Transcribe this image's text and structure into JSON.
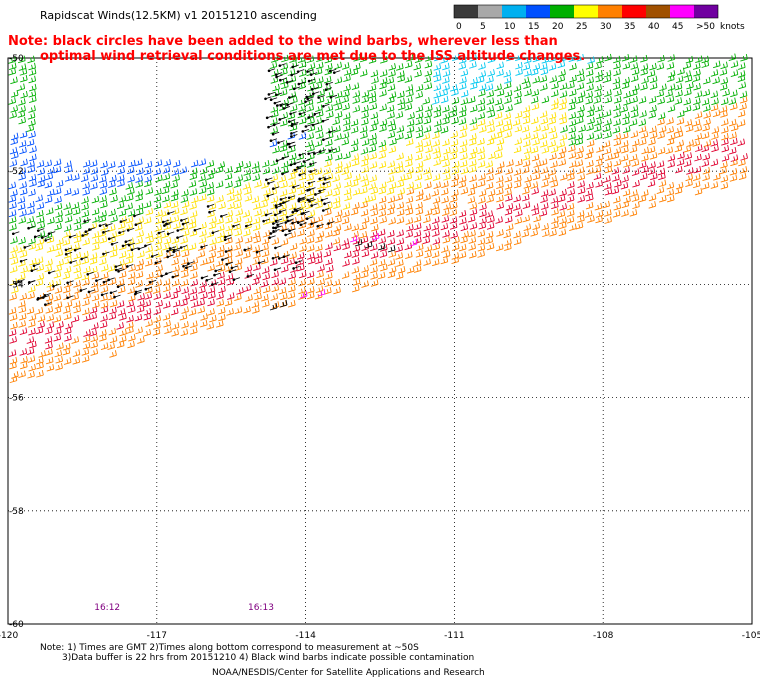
{
  "header": {
    "title": "Rapidscat Winds(12.5KM) v1 20151210 ascending"
  },
  "note": {
    "line1": "Note: black circles have been added to the wind barbs, wherever less than",
    "line2": "optimal wind retrieval conditions are met due to the ISS altitude changes."
  },
  "colorbar": {
    "units_label": "knots",
    "bins": [
      {
        "label": "0",
        "color": "#3a3a3a"
      },
      {
        "label": "5",
        "color": "#a8a8a8"
      },
      {
        "label": "10",
        "color": "#00b0f0"
      },
      {
        "label": "15",
        "color": "#0050ff"
      },
      {
        "label": "20",
        "color": "#00b000"
      },
      {
        "label": "25",
        "color": "#ffff00"
      },
      {
        "label": "30",
        "color": "#ff8000"
      },
      {
        "label": "35",
        "color": "#ff0000"
      },
      {
        "label": "40",
        "color": "#a05000"
      },
      {
        "label": "45",
        "color": "#ff00ff"
      },
      {
        "label": ">50",
        "color": "#7000a0"
      }
    ]
  },
  "map": {
    "lon_ticks": [
      "-120",
      "-117",
      "-114",
      "-111",
      "-108",
      "-105"
    ],
    "lat_ticks": [
      "-50",
      "-52",
      "-54",
      "-56",
      "-58",
      "-60"
    ],
    "lon_range": [
      -120,
      -105
    ],
    "lat_range": [
      -60,
      -50
    ],
    "time_labels": [
      {
        "text": "16:12",
        "lon": -118.0
      },
      {
        "text": "16:13",
        "lon": -114.9
      }
    ],
    "time_label_color": "#800080",
    "wind_regions": [
      {
        "speed_class": "green",
        "color": "#00b000"
      },
      {
        "speed_class": "blue",
        "color": "#0050ff"
      },
      {
        "speed_class": "cyan",
        "color": "#00c8f0"
      },
      {
        "speed_class": "yellow",
        "color": "#ffe000"
      },
      {
        "speed_class": "orange",
        "color": "#ff8000"
      },
      {
        "speed_class": "red",
        "color": "#e00030"
      },
      {
        "speed_class": "magenta",
        "color": "#ff00ff"
      },
      {
        "speed_class": "contaminated",
        "color": "#000000"
      }
    ]
  },
  "footer": {
    "line1": "Note: 1) Times are GMT 2)Times along bottom correspond to measurement at ~50S",
    "line2": "3)Data buffer is 22 hrs from 20151210 4) Black wind barbs indicate possible contamination",
    "credit": "NOAA/NESDIS/Center for Satellite Applications and Research"
  }
}
